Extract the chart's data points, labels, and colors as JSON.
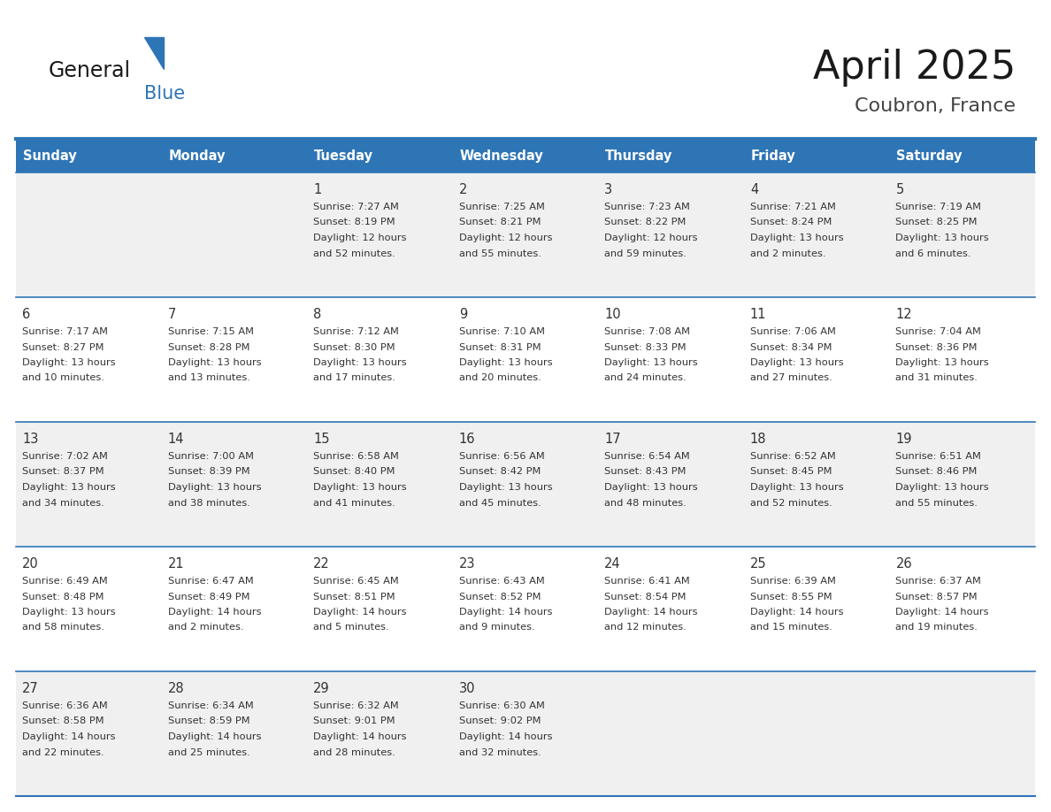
{
  "title": "April 2025",
  "subtitle": "Coubron, France",
  "header_bg": "#2E75B6",
  "header_text_color": "#FFFFFF",
  "cell_bg_odd": "#F0F0F0",
  "cell_bg_even": "#FFFFFF",
  "text_color": "#333333",
  "border_color": "#2E75B6",
  "days_of_week": [
    "Sunday",
    "Monday",
    "Tuesday",
    "Wednesday",
    "Thursday",
    "Friday",
    "Saturday"
  ],
  "logo_general_color": "#1a1a1a",
  "logo_blue_color": "#2E75B6",
  "logo_triangle_color": "#2E75B6",
  "weeks": [
    [
      {
        "day": "",
        "sunrise": "",
        "sunset": "",
        "daylight": ""
      },
      {
        "day": "",
        "sunrise": "",
        "sunset": "",
        "daylight": ""
      },
      {
        "day": "1",
        "sunrise": "Sunrise: 7:27 AM",
        "sunset": "Sunset: 8:19 PM",
        "daylight": "Daylight: 12 hours\nand 52 minutes."
      },
      {
        "day": "2",
        "sunrise": "Sunrise: 7:25 AM",
        "sunset": "Sunset: 8:21 PM",
        "daylight": "Daylight: 12 hours\nand 55 minutes."
      },
      {
        "day": "3",
        "sunrise": "Sunrise: 7:23 AM",
        "sunset": "Sunset: 8:22 PM",
        "daylight": "Daylight: 12 hours\nand 59 minutes."
      },
      {
        "day": "4",
        "sunrise": "Sunrise: 7:21 AM",
        "sunset": "Sunset: 8:24 PM",
        "daylight": "Daylight: 13 hours\nand 2 minutes."
      },
      {
        "day": "5",
        "sunrise": "Sunrise: 7:19 AM",
        "sunset": "Sunset: 8:25 PM",
        "daylight": "Daylight: 13 hours\nand 6 minutes."
      }
    ],
    [
      {
        "day": "6",
        "sunrise": "Sunrise: 7:17 AM",
        "sunset": "Sunset: 8:27 PM",
        "daylight": "Daylight: 13 hours\nand 10 minutes."
      },
      {
        "day": "7",
        "sunrise": "Sunrise: 7:15 AM",
        "sunset": "Sunset: 8:28 PM",
        "daylight": "Daylight: 13 hours\nand 13 minutes."
      },
      {
        "day": "8",
        "sunrise": "Sunrise: 7:12 AM",
        "sunset": "Sunset: 8:30 PM",
        "daylight": "Daylight: 13 hours\nand 17 minutes."
      },
      {
        "day": "9",
        "sunrise": "Sunrise: 7:10 AM",
        "sunset": "Sunset: 8:31 PM",
        "daylight": "Daylight: 13 hours\nand 20 minutes."
      },
      {
        "day": "10",
        "sunrise": "Sunrise: 7:08 AM",
        "sunset": "Sunset: 8:33 PM",
        "daylight": "Daylight: 13 hours\nand 24 minutes."
      },
      {
        "day": "11",
        "sunrise": "Sunrise: 7:06 AM",
        "sunset": "Sunset: 8:34 PM",
        "daylight": "Daylight: 13 hours\nand 27 minutes."
      },
      {
        "day": "12",
        "sunrise": "Sunrise: 7:04 AM",
        "sunset": "Sunset: 8:36 PM",
        "daylight": "Daylight: 13 hours\nand 31 minutes."
      }
    ],
    [
      {
        "day": "13",
        "sunrise": "Sunrise: 7:02 AM",
        "sunset": "Sunset: 8:37 PM",
        "daylight": "Daylight: 13 hours\nand 34 minutes."
      },
      {
        "day": "14",
        "sunrise": "Sunrise: 7:00 AM",
        "sunset": "Sunset: 8:39 PM",
        "daylight": "Daylight: 13 hours\nand 38 minutes."
      },
      {
        "day": "15",
        "sunrise": "Sunrise: 6:58 AM",
        "sunset": "Sunset: 8:40 PM",
        "daylight": "Daylight: 13 hours\nand 41 minutes."
      },
      {
        "day": "16",
        "sunrise": "Sunrise: 6:56 AM",
        "sunset": "Sunset: 8:42 PM",
        "daylight": "Daylight: 13 hours\nand 45 minutes."
      },
      {
        "day": "17",
        "sunrise": "Sunrise: 6:54 AM",
        "sunset": "Sunset: 8:43 PM",
        "daylight": "Daylight: 13 hours\nand 48 minutes."
      },
      {
        "day": "18",
        "sunrise": "Sunrise: 6:52 AM",
        "sunset": "Sunset: 8:45 PM",
        "daylight": "Daylight: 13 hours\nand 52 minutes."
      },
      {
        "day": "19",
        "sunrise": "Sunrise: 6:51 AM",
        "sunset": "Sunset: 8:46 PM",
        "daylight": "Daylight: 13 hours\nand 55 minutes."
      }
    ],
    [
      {
        "day": "20",
        "sunrise": "Sunrise: 6:49 AM",
        "sunset": "Sunset: 8:48 PM",
        "daylight": "Daylight: 13 hours\nand 58 minutes."
      },
      {
        "day": "21",
        "sunrise": "Sunrise: 6:47 AM",
        "sunset": "Sunset: 8:49 PM",
        "daylight": "Daylight: 14 hours\nand 2 minutes."
      },
      {
        "day": "22",
        "sunrise": "Sunrise: 6:45 AM",
        "sunset": "Sunset: 8:51 PM",
        "daylight": "Daylight: 14 hours\nand 5 minutes."
      },
      {
        "day": "23",
        "sunrise": "Sunrise: 6:43 AM",
        "sunset": "Sunset: 8:52 PM",
        "daylight": "Daylight: 14 hours\nand 9 minutes."
      },
      {
        "day": "24",
        "sunrise": "Sunrise: 6:41 AM",
        "sunset": "Sunset: 8:54 PM",
        "daylight": "Daylight: 14 hours\nand 12 minutes."
      },
      {
        "day": "25",
        "sunrise": "Sunrise: 6:39 AM",
        "sunset": "Sunset: 8:55 PM",
        "daylight": "Daylight: 14 hours\nand 15 minutes."
      },
      {
        "day": "26",
        "sunrise": "Sunrise: 6:37 AM",
        "sunset": "Sunset: 8:57 PM",
        "daylight": "Daylight: 14 hours\nand 19 minutes."
      }
    ],
    [
      {
        "day": "27",
        "sunrise": "Sunrise: 6:36 AM",
        "sunset": "Sunset: 8:58 PM",
        "daylight": "Daylight: 14 hours\nand 22 minutes."
      },
      {
        "day": "28",
        "sunrise": "Sunrise: 6:34 AM",
        "sunset": "Sunset: 8:59 PM",
        "daylight": "Daylight: 14 hours\nand 25 minutes."
      },
      {
        "day": "29",
        "sunrise": "Sunrise: 6:32 AM",
        "sunset": "Sunset: 9:01 PM",
        "daylight": "Daylight: 14 hours\nand 28 minutes."
      },
      {
        "day": "30",
        "sunrise": "Sunrise: 6:30 AM",
        "sunset": "Sunset: 9:02 PM",
        "daylight": "Daylight: 14 hours\nand 32 minutes."
      },
      {
        "day": "",
        "sunrise": "",
        "sunset": "",
        "daylight": ""
      },
      {
        "day": "",
        "sunrise": "",
        "sunset": "",
        "daylight": ""
      },
      {
        "day": "",
        "sunrise": "",
        "sunset": "",
        "daylight": ""
      }
    ]
  ]
}
